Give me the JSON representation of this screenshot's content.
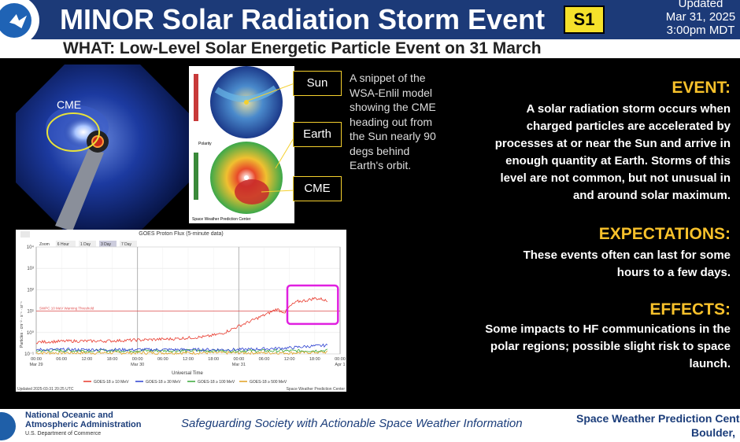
{
  "header": {
    "title": "MINOR Solar Radiation Storm Event",
    "scale_badge": "S1",
    "updated_label": "Updated",
    "updated_date": "Mar 31, 2025",
    "updated_time": "3:00pm MDT"
  },
  "subtitle": "WHAT: Low-Level Solar Energetic Particle Event on 31 March",
  "coronagraph": {
    "cme_label": "CME"
  },
  "model": {
    "labels": {
      "sun": "Sun",
      "earth": "Earth",
      "cme": "CME"
    },
    "caption": "A snippet of the WSA-Enlil model showing the CME heading out from the Sun nearly 90 degs behind Earth's orbit.",
    "credit": "Space Weather Prediction Center",
    "polarity_label": "Polarity"
  },
  "event": {
    "heading": "EVENT:",
    "lines": [
      "A solar radiation storm occurs when",
      "charged particles are accelerated by",
      "processes at or near the Sun and arrive in",
      "enough quantity at Earth. Storms of this",
      "level are not common, but not unusual in",
      "and around solar maximum."
    ]
  },
  "expectations": {
    "heading": "EXPECTATIONS:",
    "lines": [
      "These events often can last for some",
      "hours to a few days."
    ]
  },
  "effects": {
    "heading": "EFFECTS:",
    "lines": [
      "Some impacts to HF communications in the",
      "polar regions; possible slight risk to space",
      "launch."
    ]
  },
  "chart_data": {
    "type": "line",
    "title": "GOES Proton Flux (5-minute data)",
    "buttons": [
      "Zoom",
      "6 Hour",
      "1 Day",
      "3 Day",
      "7 Day"
    ],
    "xlabel": "Universal Time",
    "ylabel": "Particles · cm⁻² · s⁻¹ · sr⁻¹",
    "y_scale": "log",
    "ylim_exponents": [
      -1,
      4
    ],
    "y_ticks": [
      "10⁴",
      "10³",
      "10²",
      "10¹",
      "10⁰",
      "10⁻¹"
    ],
    "x_ticks": [
      {
        "h": 0,
        "t": "00:00",
        "d": "Mar 29"
      },
      {
        "h": 6,
        "t": "06:00",
        "d": ""
      },
      {
        "h": 12,
        "t": "12:00",
        "d": ""
      },
      {
        "h": 18,
        "t": "18:00",
        "d": ""
      },
      {
        "h": 24,
        "t": "00:00",
        "d": "Mar 30"
      },
      {
        "h": 30,
        "t": "06:00",
        "d": ""
      },
      {
        "h": 36,
        "t": "12:00",
        "d": ""
      },
      {
        "h": 42,
        "t": "18:00",
        "d": ""
      },
      {
        "h": 48,
        "t": "00:00",
        "d": "Mar 31"
      },
      {
        "h": 54,
        "t": "06:00",
        "d": ""
      },
      {
        "h": 60,
        "t": "12:00",
        "d": ""
      },
      {
        "h": 66,
        "t": "18:00",
        "d": ""
      },
      {
        "h": 72,
        "t": "00:00",
        "d": "Apr 1"
      }
    ],
    "threshold": {
      "value_log10": 1,
      "label": "SWPC 10 MeV Warning Threshold",
      "color": "#e05050"
    },
    "series": [
      {
        "name": "GOES-18 ≥ 10 MeV",
        "color": "#e8382b",
        "hours": [
          0,
          8,
          16,
          24,
          32,
          40,
          44,
          48,
          51,
          55,
          57,
          58,
          59,
          60,
          61,
          62,
          64,
          66,
          68,
          69
        ],
        "log10": [
          -0.45,
          -0.4,
          -0.4,
          -0.35,
          -0.3,
          -0.2,
          -0.05,
          0.3,
          0.55,
          0.9,
          1.1,
          1.0,
          0.95,
          1.2,
          1.35,
          1.45,
          1.5,
          1.6,
          1.55,
          1.45
        ]
      },
      {
        "name": "GOES-18 ≥ 30 MeV",
        "color": "#2a3fd0",
        "hours": [
          0,
          24,
          48,
          56,
          60,
          64,
          69
        ],
        "log10": [
          -0.8,
          -0.8,
          -0.8,
          -0.75,
          -0.72,
          -0.65,
          -0.6
        ]
      },
      {
        "name": "GOES-18 ≥ 100 MeV",
        "color": "#38a838",
        "hours": [
          0,
          24,
          48,
          60,
          69
        ],
        "log10": [
          -0.85,
          -0.85,
          -0.85,
          -0.86,
          -0.84
        ]
      },
      {
        "name": "GOES-18 ≥ 500 MeV",
        "color": "#e0a020",
        "hours": [
          0,
          24,
          48,
          60,
          69
        ],
        "log10": [
          -0.95,
          -0.95,
          -0.95,
          -0.95,
          -0.92
        ]
      }
    ],
    "timestamp": "Updated 2025-03-31 20:25 UTC",
    "credit": "Space Weather Prediction Center",
    "highlight_hours": [
      59.5,
      71.5
    ]
  },
  "footer": {
    "org": "National Oceanic and Atmospheric Administration",
    "org_line1": "National Oceanic and",
    "org_line2": "Atmospheric Administration",
    "dept": "U.S. Department of Commerce",
    "slogan": "Safeguarding Society with Actionable Space Weather Information",
    "center": "Space Weather Prediction Cent",
    "location": "Boulder,"
  }
}
